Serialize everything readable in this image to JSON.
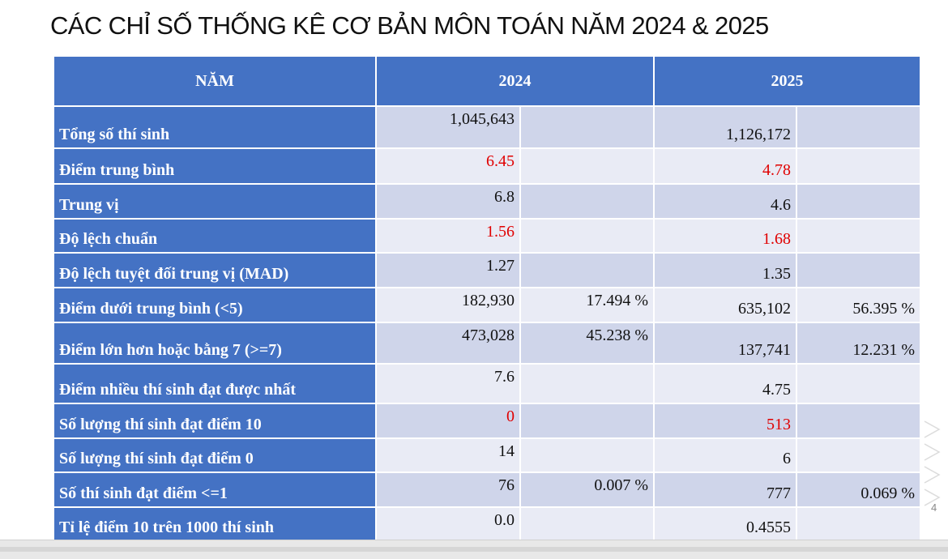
{
  "slide": {
    "title": "CÁC CHỈ SỐ THỐNG KÊ CƠ BẢN MÔN TOÁN NĂM 2024 & 2025",
    "page_number": "4"
  },
  "table": {
    "headers": [
      "NĂM",
      "2024",
      "2025"
    ],
    "highlight_color": "#e00000",
    "header_color": "#4472c4",
    "rows": [
      {
        "label": "Tổng số thí sinh",
        "v2024": "1,045,643",
        "p2024": "",
        "v2025": "1,126,172",
        "p2025": "",
        "red": false
      },
      {
        "label": "Điểm trung bình",
        "v2024": "6.45",
        "p2024": "",
        "v2025": "4.78",
        "p2025": "",
        "red": true
      },
      {
        "label": "Trung vị",
        "v2024": "6.8",
        "p2024": "",
        "v2025": "4.6",
        "p2025": "",
        "red": false
      },
      {
        "label": "Độ lệch chuẩn",
        "v2024": "1.56",
        "p2024": "",
        "v2025": "1.68",
        "p2025": "",
        "red": true
      },
      {
        "label": "Độ lệch tuyệt đối trung vị (MAD)",
        "v2024": "1.27",
        "p2024": "",
        "v2025": "1.35",
        "p2025": "",
        "red": false
      },
      {
        "label": "Điểm dưới trung bình (<5)",
        "v2024": "182,930",
        "p2024": "17.494 %",
        "v2025": "635,102",
        "p2025": "56.395 %",
        "red": false
      },
      {
        "label": "Điểm lớn hơn hoặc bằng 7 (>=7)",
        "v2024": "473,028",
        "p2024": "45.238 %",
        "v2025": "137,741",
        "p2025": "12.231 %",
        "red": false
      },
      {
        "label": "Điểm nhiều thí sinh đạt được nhất",
        "v2024": "7.6",
        "p2024": "",
        "v2025": "4.75",
        "p2025": "",
        "red": false
      },
      {
        "label": "Số lượng thí sinh đạt điểm 10",
        "v2024": "0",
        "p2024": "",
        "v2025": "513",
        "p2025": "",
        "red": true
      },
      {
        "label": "Số lượng thí sinh đạt điểm 0",
        "v2024": "14",
        "p2024": "",
        "v2025": "6",
        "p2025": "",
        "red": false
      },
      {
        "label": "Số thí sinh đạt điểm <=1",
        "v2024": "76",
        "p2024": "0.007 %",
        "v2025": "777",
        "p2025": "0.069 %",
        "red": false
      },
      {
        "label": "Tỉ lệ điểm 10 trên 1000 thí sinh",
        "v2024": "0.0",
        "p2024": "",
        "v2025": "0.4555",
        "p2025": "",
        "red": false
      }
    ]
  }
}
